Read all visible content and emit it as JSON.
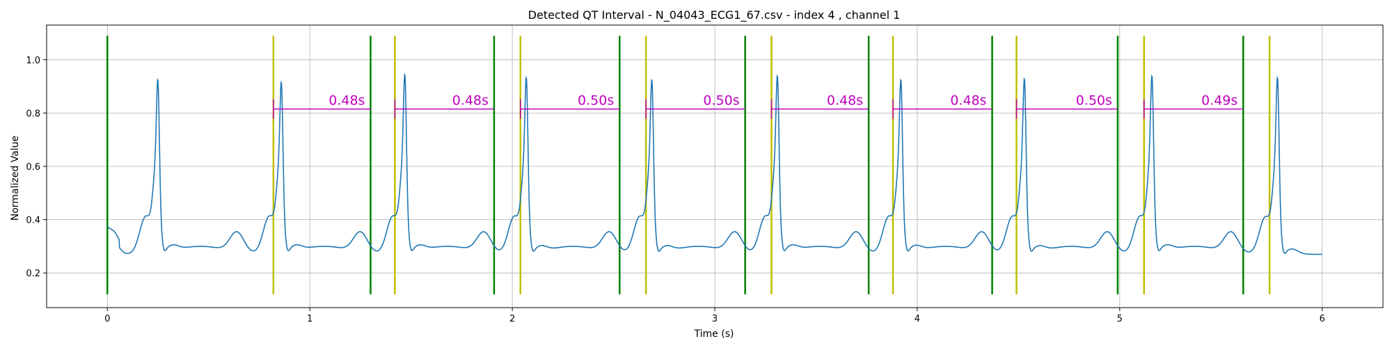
{
  "chart_data": {
    "type": "line",
    "title": "Detected QT Interval - N_04043_ECG1_67.csv - index 4 , channel 1",
    "xlabel": "Time (s)",
    "ylabel": "Normalized Value",
    "xlim": [
      -0.3,
      6.3
    ],
    "ylim": [
      0.07,
      1.13
    ],
    "xticks": [
      0,
      1,
      2,
      3,
      4,
      5,
      6
    ],
    "xtick_labels": [
      "0",
      "1",
      "2",
      "3",
      "4",
      "5",
      "6"
    ],
    "yticks": [
      0.2,
      0.4,
      0.6,
      0.8,
      1.0
    ],
    "ytick_labels": [
      "0.2",
      "0.4",
      "0.6",
      "0.8",
      "1.0"
    ],
    "grid": true,
    "colors": {
      "signal": "#1f77b4",
      "q_marker": "#bfbf00",
      "t_marker": "#008000",
      "interval": "#c000c0"
    },
    "ecg": {
      "r_peaks": [
        0.25,
        0.86,
        1.47,
        2.07,
        2.69,
        3.31,
        3.92,
        4.53,
        5.16,
        5.78
      ],
      "r_amplitudes": [
        0.93,
        0.92,
        0.95,
        0.94,
        0.93,
        0.945,
        0.93,
        0.935,
        0.945,
        0.945
      ],
      "t_wave_times": [
        0.64,
        1.25,
        1.86,
        2.48,
        3.1,
        3.7,
        4.32,
        4.94,
        5.55
      ],
      "baseline": 0.27,
      "x_end": 6.0
    },
    "green_markers_x": [
      0.0,
      1.3,
      1.91,
      2.53,
      3.15,
      3.76,
      4.37,
      4.99,
      5.61
    ],
    "yellow_markers_x": [
      0.82,
      1.42,
      2.04,
      2.66,
      3.28,
      3.88,
      4.49,
      5.12,
      5.74
    ],
    "marker_y_range": [
      0.12,
      1.09
    ],
    "intervals": [
      {
        "start": 0.82,
        "end": 1.3,
        "label": "0.48s"
      },
      {
        "start": 1.42,
        "end": 1.91,
        "label": "0.48s"
      },
      {
        "start": 2.04,
        "end": 2.53,
        "label": "0.50s"
      },
      {
        "start": 2.66,
        "end": 3.15,
        "label": "0.50s"
      },
      {
        "start": 3.28,
        "end": 3.76,
        "label": "0.48s"
      },
      {
        "start": 3.88,
        "end": 4.37,
        "label": "0.48s"
      },
      {
        "start": 4.49,
        "end": 4.99,
        "label": "0.50s"
      },
      {
        "start": 5.12,
        "end": 5.61,
        "label": "0.49s"
      }
    ],
    "interval_y": 0.815
  }
}
